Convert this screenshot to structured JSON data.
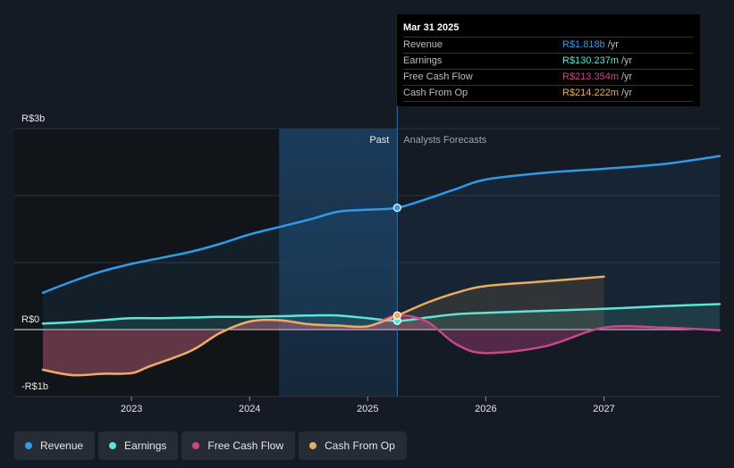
{
  "colors": {
    "revenue": "#2f9be8",
    "earnings": "#5ee4d5",
    "fcf": "#c7478a",
    "cfo": "#e9ac62",
    "background": "#151b24"
  },
  "tooltip": {
    "date": "Mar 31 2025",
    "rows": [
      {
        "label": "Revenue",
        "value": "R$1.818b",
        "unit": "/yr",
        "color": "#2f9be8"
      },
      {
        "label": "Earnings",
        "value": "R$130.237m",
        "unit": "/yr",
        "color": "#5ee4d5"
      },
      {
        "label": "Free Cash Flow",
        "value": "R$213.354m",
        "unit": "/yr",
        "color": "#c7478a"
      },
      {
        "label": "Cash From Op",
        "value": "R$214.222m",
        "unit": "/yr",
        "color": "#e9ac62"
      }
    ]
  },
  "chart_data": {
    "type": "line",
    "y_axis_labels": {
      "top": "R$3b",
      "zero": "R$0",
      "bottom": "-R$1b"
    },
    "ylim": [
      -1.0,
      3.0
    ],
    "xlim": [
      2022.25,
      2027.98
    ],
    "x_ticks": [
      {
        "value": 2023.0,
        "label": "2023"
      },
      {
        "value": 2024.0,
        "label": "2024"
      },
      {
        "value": 2025.0,
        "label": "2025"
      },
      {
        "value": 2026.0,
        "label": "2026"
      },
      {
        "value": 2027.0,
        "label": "2027"
      }
    ],
    "gridlines": [
      3.0,
      2.0,
      1.0,
      0.0,
      -1.0
    ],
    "past_start": 2024.25,
    "divider": 2025.25,
    "period_labels": {
      "past": "Past",
      "forecast": "Analysts Forecasts"
    },
    "series": [
      {
        "key": "revenue",
        "name": "Revenue",
        "points": [
          [
            2022.25,
            0.55
          ],
          [
            2022.5,
            0.72
          ],
          [
            2022.75,
            0.87
          ],
          [
            2023.0,
            0.98
          ],
          [
            2023.25,
            1.07
          ],
          [
            2023.5,
            1.16
          ],
          [
            2023.75,
            1.28
          ],
          [
            2024.0,
            1.42
          ],
          [
            2024.25,
            1.53
          ],
          [
            2024.5,
            1.64
          ],
          [
            2024.75,
            1.76
          ],
          [
            2025.0,
            1.79
          ],
          [
            2025.25,
            1.818
          ],
          [
            2025.5,
            1.95
          ],
          [
            2025.75,
            2.1
          ],
          [
            2026.0,
            2.24
          ],
          [
            2026.5,
            2.34
          ],
          [
            2027.0,
            2.4
          ],
          [
            2027.5,
            2.47
          ],
          [
            2027.98,
            2.59
          ]
        ]
      },
      {
        "key": "earnings",
        "name": "Earnings",
        "points": [
          [
            2022.25,
            0.09
          ],
          [
            2022.5,
            0.11
          ],
          [
            2022.75,
            0.14
          ],
          [
            2023.0,
            0.17
          ],
          [
            2023.25,
            0.17
          ],
          [
            2023.5,
            0.18
          ],
          [
            2023.75,
            0.19
          ],
          [
            2024.0,
            0.19
          ],
          [
            2024.25,
            0.2
          ],
          [
            2024.5,
            0.21
          ],
          [
            2024.75,
            0.21
          ],
          [
            2025.0,
            0.17
          ],
          [
            2025.25,
            0.13
          ],
          [
            2025.5,
            0.18
          ],
          [
            2025.75,
            0.23
          ],
          [
            2026.0,
            0.25
          ],
          [
            2026.5,
            0.28
          ],
          [
            2027.0,
            0.31
          ],
          [
            2027.5,
            0.35
          ],
          [
            2027.98,
            0.38
          ]
        ]
      },
      {
        "key": "fcf",
        "name": "Free Cash Flow",
        "points": [
          [
            2022.25,
            -0.6
          ],
          [
            2022.5,
            -0.68
          ],
          [
            2022.75,
            -0.66
          ],
          [
            2023.0,
            -0.65
          ],
          [
            2023.15,
            -0.55
          ],
          [
            2023.5,
            -0.32
          ],
          [
            2023.75,
            -0.05
          ],
          [
            2024.0,
            0.12
          ],
          [
            2024.25,
            0.14
          ],
          [
            2024.5,
            0.08
          ],
          [
            2024.75,
            0.06
          ],
          [
            2025.0,
            0.05
          ],
          [
            2025.25,
            0.21
          ],
          [
            2025.5,
            0.12
          ],
          [
            2025.75,
            -0.22
          ],
          [
            2026.0,
            -0.35
          ],
          [
            2026.5,
            -0.25
          ],
          [
            2027.0,
            0.03
          ],
          [
            2027.5,
            0.03
          ],
          [
            2027.98,
            -0.01
          ]
        ]
      },
      {
        "key": "cfo",
        "name": "Cash From Op",
        "points": [
          [
            2022.25,
            -0.6
          ],
          [
            2022.5,
            -0.68
          ],
          [
            2022.75,
            -0.66
          ],
          [
            2023.0,
            -0.65
          ],
          [
            2023.15,
            -0.55
          ],
          [
            2023.5,
            -0.32
          ],
          [
            2023.75,
            -0.05
          ],
          [
            2024.0,
            0.12
          ],
          [
            2024.25,
            0.14
          ],
          [
            2024.5,
            0.08
          ],
          [
            2024.75,
            0.06
          ],
          [
            2025.0,
            0.05
          ],
          [
            2025.25,
            0.21
          ],
          [
            2025.5,
            0.4
          ],
          [
            2025.75,
            0.55
          ],
          [
            2026.0,
            0.65
          ],
          [
            2026.5,
            0.72
          ],
          [
            2027.0,
            0.79
          ]
        ]
      }
    ],
    "marker_x": 2025.25
  },
  "legend": [
    {
      "key": "revenue",
      "label": "Revenue"
    },
    {
      "key": "earnings",
      "label": "Earnings"
    },
    {
      "key": "fcf",
      "label": "Free Cash Flow"
    },
    {
      "key": "cfo",
      "label": "Cash From Op"
    }
  ]
}
